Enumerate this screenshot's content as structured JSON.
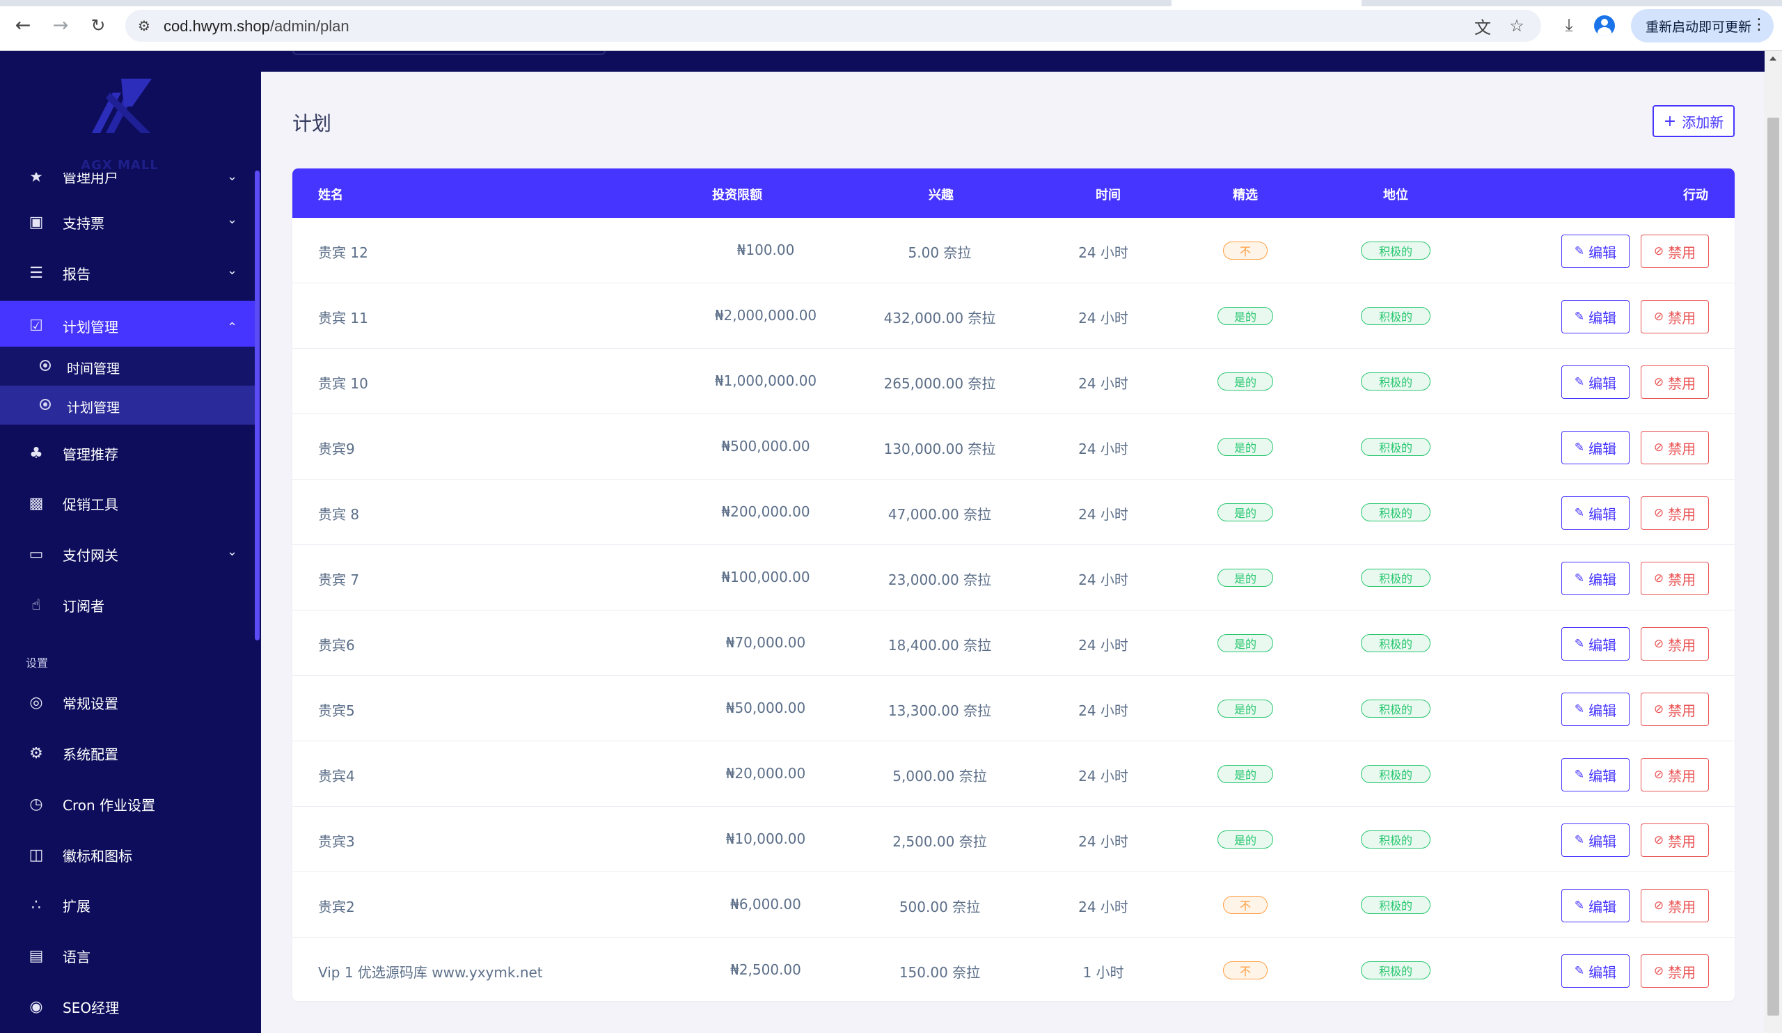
{
  "browser": {
    "url_host": "cod.hwym.shop",
    "url_path": "/admin/plan",
    "update_button_label": "重新启动即可更新"
  },
  "sidebar": {
    "logo_text": "AGX MALL",
    "items": [
      {
        "id": "manage-users",
        "label": "管理用户",
        "icon": "users-icon"
      },
      {
        "id": "support-tickets",
        "label": "支持票",
        "icon": "ticket-icon"
      },
      {
        "id": "reports",
        "label": "报告",
        "icon": "list-icon"
      },
      {
        "id": "plan-management",
        "label": "计划管理",
        "icon": "clipboard-icon"
      },
      {
        "id": "referral-management",
        "label": "管理推荐",
        "icon": "tree-icon"
      },
      {
        "id": "promotion-tools",
        "label": "促销工具",
        "icon": "presentation-icon"
      },
      {
        "id": "payment-gateways",
        "label": "支付网关",
        "icon": "credit-card-icon"
      },
      {
        "id": "subscribers",
        "label": "订阅者",
        "icon": "thumbs-up-icon"
      }
    ],
    "sub_items": [
      {
        "id": "time-management",
        "label": "时间管理"
      },
      {
        "id": "plan-management-sub",
        "label": "计划管理"
      }
    ],
    "settings_title": "设置",
    "settings_items": [
      {
        "id": "general-settings",
        "label": "常规设置",
        "icon": "life-ring-icon"
      },
      {
        "id": "system-config",
        "label": "系统配置",
        "icon": "gear-icon"
      },
      {
        "id": "cron-settings",
        "label": "Cron 作业设置",
        "icon": "clock-icon"
      },
      {
        "id": "logo-icons",
        "label": "徽标和图标",
        "icon": "images-icon"
      },
      {
        "id": "extensions",
        "label": "扩展",
        "icon": "cubes-icon"
      },
      {
        "id": "language",
        "label": "语言",
        "icon": "language-icon"
      },
      {
        "id": "seo-manager",
        "label": "SEO经理",
        "icon": "globe-icon"
      }
    ]
  },
  "page": {
    "title": "计划",
    "add_new_label": "添加新"
  },
  "table": {
    "headers": {
      "name": "姓名",
      "limit": "投资限额",
      "interest": "兴趣",
      "time": "时间",
      "featured": "精选",
      "status": "地位",
      "action": "行动"
    },
    "edit_label": "编辑",
    "disable_label": "禁用",
    "rows": [
      {
        "name": "贵宾 12",
        "limit": "₦100.00",
        "interest": "5.00 奈拉",
        "time": "24 小时",
        "featured": "不",
        "featured_state": "no",
        "status": "积极的"
      },
      {
        "name": "贵宾 11",
        "limit": "₦2,000,000.00",
        "interest": "432,000.00 奈拉",
        "time": "24 小时",
        "featured": "是的",
        "featured_state": "yes",
        "status": "积极的"
      },
      {
        "name": "贵宾 10",
        "limit": "₦1,000,000.00",
        "interest": "265,000.00 奈拉",
        "time": "24 小时",
        "featured": "是的",
        "featured_state": "yes",
        "status": "积极的"
      },
      {
        "name": "贵宾9",
        "limit": "₦500,000.00",
        "interest": "130,000.00 奈拉",
        "time": "24 小时",
        "featured": "是的",
        "featured_state": "yes",
        "status": "积极的"
      },
      {
        "name": "贵宾 8",
        "limit": "₦200,000.00",
        "interest": "47,000.00 奈拉",
        "time": "24 小时",
        "featured": "是的",
        "featured_state": "yes",
        "status": "积极的"
      },
      {
        "name": "贵宾 7",
        "limit": "₦100,000.00",
        "interest": "23,000.00 奈拉",
        "time": "24 小时",
        "featured": "是的",
        "featured_state": "yes",
        "status": "积极的"
      },
      {
        "name": "贵宾6",
        "limit": "₦70,000.00",
        "interest": "18,400.00 奈拉",
        "time": "24 小时",
        "featured": "是的",
        "featured_state": "yes",
        "status": "积极的"
      },
      {
        "name": "贵宾5",
        "limit": "₦50,000.00",
        "interest": "13,300.00 奈拉",
        "time": "24 小时",
        "featured": "是的",
        "featured_state": "yes",
        "status": "积极的"
      },
      {
        "name": "贵宾4",
        "limit": "₦20,000.00",
        "interest": "5,000.00 奈拉",
        "time": "24 小时",
        "featured": "是的",
        "featured_state": "yes",
        "status": "积极的"
      },
      {
        "name": "贵宾3",
        "limit": "₦10,000.00",
        "interest": "2,500.00 奈拉",
        "time": "24 小时",
        "featured": "是的",
        "featured_state": "yes",
        "status": "积极的"
      },
      {
        "name": "贵宾2",
        "limit": "₦6,000.00",
        "interest": "500.00 奈拉",
        "time": "24 小时",
        "featured": "不",
        "featured_state": "no",
        "status": "积极的"
      },
      {
        "name": "Vip 1 优选源码库 www.yxymk.net",
        "limit": "₦2,500.00",
        "interest": "150.00 奈拉",
        "time": "1 小时",
        "featured": "不",
        "featured_state": "no",
        "status": "积极的"
      }
    ]
  },
  "colors": {
    "sidebar_bg": "#0d0d5c",
    "accent": "#4634ff",
    "success": "#28c76f",
    "warning": "#ff9f43",
    "danger": "#ea5455"
  }
}
